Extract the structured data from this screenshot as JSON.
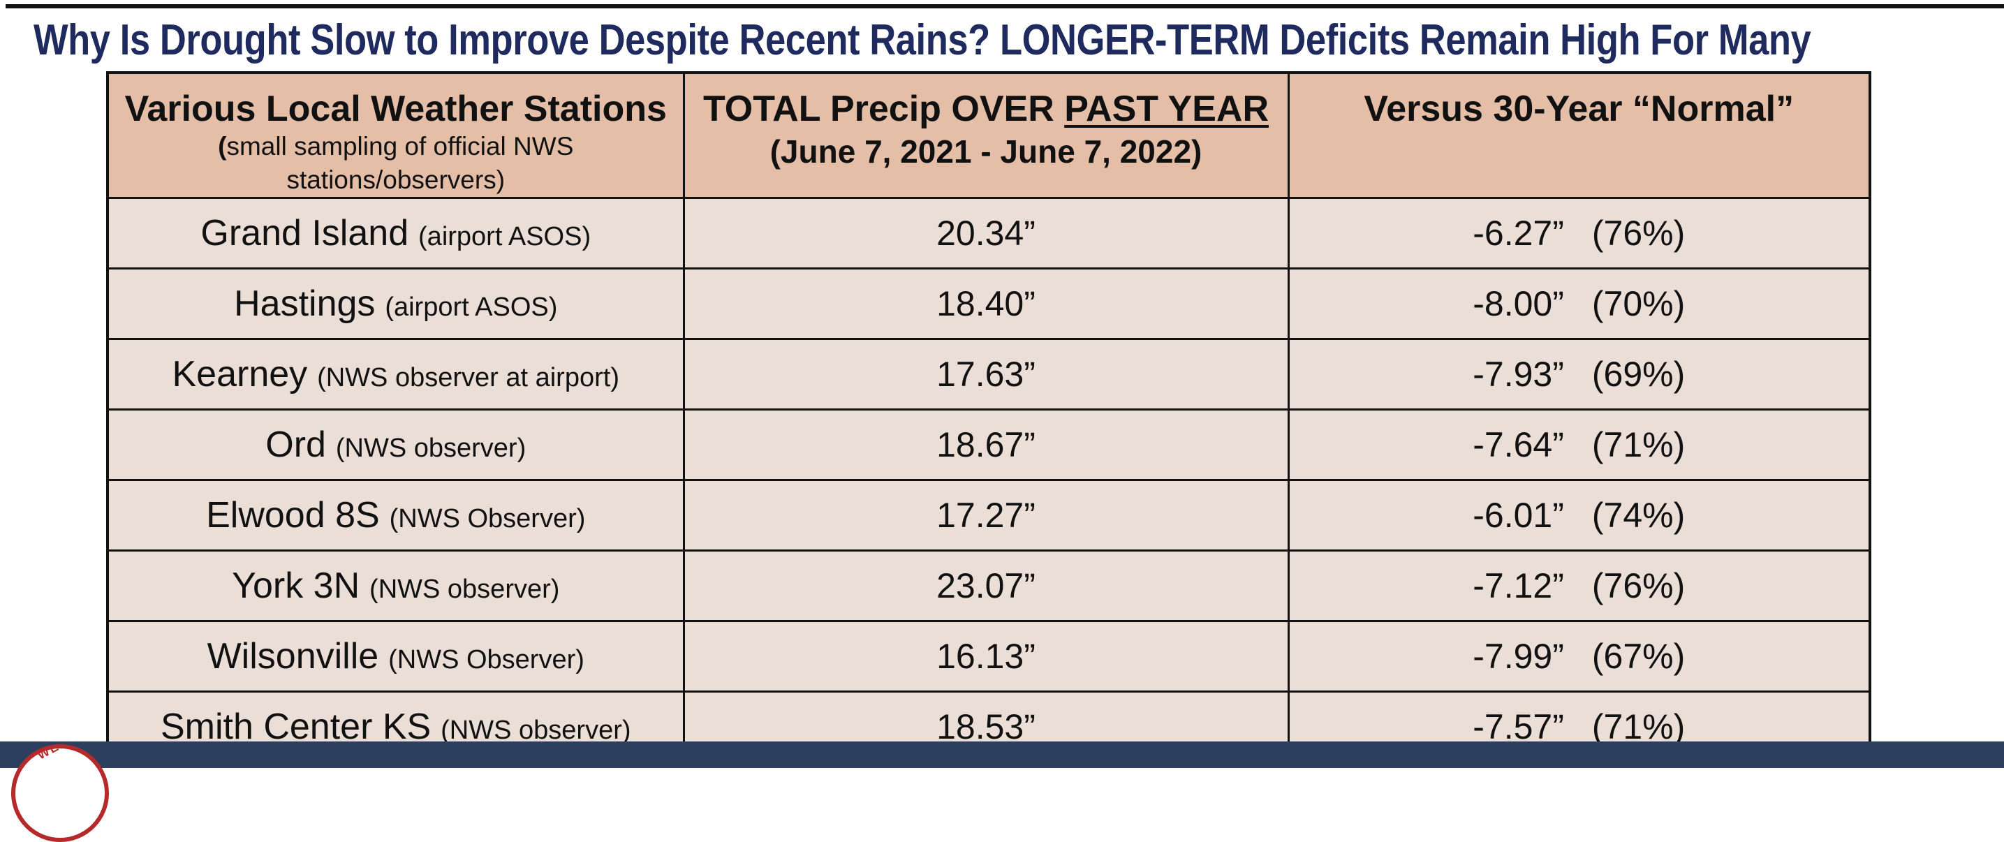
{
  "title": "Why Is Drought Slow to Improve Despite Recent Rains?  LONGER-TERM Deficits Remain High For Many",
  "colors": {
    "title": "#1f2a5e",
    "header_fill": "#e4bea7",
    "row_fill": "#ebded6",
    "footer_bar": "#2d3f5e",
    "logo_accent": "#b52a2a"
  },
  "logo": {
    "icon": "weather-service-seal-icon",
    "text": "WEATHE"
  },
  "table": {
    "headers": {
      "col1_main": "Various Local Weather Stations",
      "col1_sub_open": "(",
      "col1_sub_text": "small sampling of official NWS stations/observers)",
      "col2_main_prefix": "TOTAL Precip OVER ",
      "col2_main_underlined": "PAST YEAR",
      "col2_dates": "(June 7, 2021 - June 7, 2022)",
      "col3_main": "Versus 30-Year “Normal”"
    },
    "rows": [
      {
        "station": "Grand Island",
        "note": "(airport ASOS)",
        "precip": "20.34”",
        "departure": "-6.27”",
        "percent": "(76%)"
      },
      {
        "station": "Hastings",
        "note": "(airport ASOS)",
        "precip": "18.40”",
        "departure": "-8.00”",
        "percent": "(70%)"
      },
      {
        "station": "Kearney",
        "note": "(NWS observer at airport)",
        "precip": "17.63”",
        "departure": "-7.93”",
        "percent": "(69%)"
      },
      {
        "station": "Ord",
        "note": "(NWS observer)",
        "precip": "18.67”",
        "departure": "-7.64”",
        "percent": "(71%)"
      },
      {
        "station": "Elwood 8S",
        "note": "(NWS Observer)",
        "precip": "17.27”",
        "departure": "-6.01”",
        "percent": "(74%)"
      },
      {
        "station": "York 3N",
        "note": "(NWS observer)",
        "precip": "23.07”",
        "departure": "-7.12”",
        "percent": "(76%)"
      },
      {
        "station": "Wilsonville",
        "note": "(NWS Observer)",
        "precip": "16.13”",
        "departure": "-7.99”",
        "percent": "(67%)"
      },
      {
        "station": "Smith Center KS",
        "note": "(NWS observer)",
        "precip": "18.53”",
        "departure": "-7.57”",
        "percent": "(71%)"
      }
    ]
  }
}
